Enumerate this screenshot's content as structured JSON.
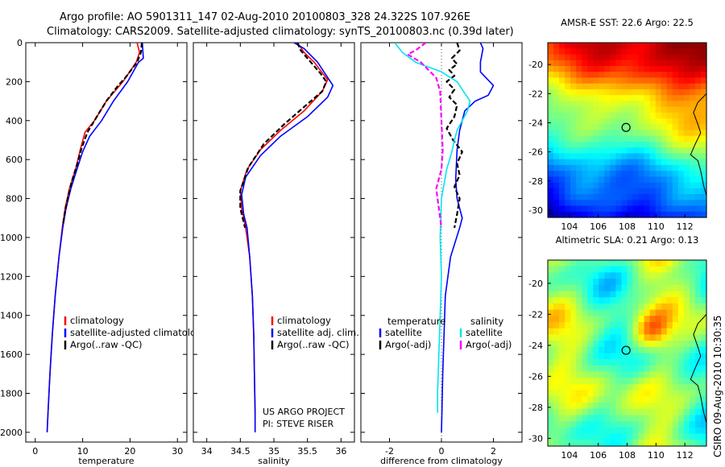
{
  "header": {
    "line1": "Argo profile: AO 5901311_147 02-Aug-2010 20100803_328 24.322S 107.926E",
    "line2": "Climatology: CARS2009. Satellite-adjusted climatology: synTS_20100803.nc (0.39d later)"
  },
  "side_caption": "CSIRO 09-Aug-2010 10:30:35",
  "chart_data": [
    {
      "type": "line",
      "id": "temperature",
      "xlabel": "temperature",
      "ylabel": "",
      "xlim": [
        -2,
        32
      ],
      "ylim": [
        2050,
        0
      ],
      "xticks": [
        0,
        10,
        20,
        30
      ],
      "yticks": [
        0,
        200,
        400,
        600,
        800,
        1000,
        1200,
        1400,
        1600,
        1800,
        2000
      ],
      "legend": [
        "climatology",
        "satellite-adjusted climatology",
        "Argo(..raw -QC)"
      ],
      "series": [
        {
          "name": "climatology",
          "color": "#ff0000",
          "dash": "",
          "points": [
            [
              21.5,
              0
            ],
            [
              22,
              50
            ],
            [
              21.3,
              100
            ],
            [
              18.5,
              200
            ],
            [
              15,
              300
            ],
            [
              12.5,
              400
            ],
            [
              10.5,
              460
            ],
            [
              9.5,
              550
            ],
            [
              8.5,
              650
            ],
            [
              7.2,
              750
            ],
            [
              6.3,
              850
            ],
            [
              5.7,
              950
            ],
            [
              5,
              1100
            ],
            [
              4.2,
              1300
            ],
            [
              3.6,
              1500
            ],
            [
              3.1,
              1700
            ],
            [
              2.7,
              1900
            ],
            [
              2.5,
              2000
            ]
          ]
        },
        {
          "name": "satellite-adjusted climatology",
          "color": "#0000ff",
          "dash": "",
          "points": [
            [
              22.6,
              0
            ],
            [
              22.8,
              80
            ],
            [
              21.8,
              100
            ],
            [
              19.5,
              200
            ],
            [
              16.5,
              300
            ],
            [
              14,
              400
            ],
            [
              11.5,
              480
            ],
            [
              10,
              560
            ],
            [
              8.8,
              650
            ],
            [
              7.5,
              750
            ],
            [
              6.5,
              850
            ],
            [
              5.8,
              950
            ],
            [
              5,
              1100
            ],
            [
              4.2,
              1300
            ],
            [
              3.6,
              1500
            ],
            [
              3.1,
              1700
            ],
            [
              2.7,
              1900
            ],
            [
              2.5,
              2000
            ]
          ]
        },
        {
          "name": "Argo(..raw -QC)",
          "color": "#000000",
          "dash": "6 3",
          "points": [
            [
              22.5,
              0
            ],
            [
              22.3,
              50
            ],
            [
              21.5,
              100
            ],
            [
              19,
              180
            ],
            [
              17.5,
              220
            ],
            [
              15,
              300
            ],
            [
              13,
              380
            ],
            [
              11,
              460
            ],
            [
              9.8,
              540
            ],
            [
              8.9,
              620
            ],
            [
              7.6,
              720
            ],
            [
              6.5,
              840
            ],
            [
              5.8,
              940
            ]
          ]
        }
      ]
    },
    {
      "type": "line",
      "id": "salinity",
      "xlabel": "salinity",
      "ylabel": "",
      "xlim": [
        33.8,
        36.2
      ],
      "ylim": [
        2050,
        0
      ],
      "xticks": [
        34,
        34.5,
        35,
        35.5,
        36
      ],
      "tick_labels": [
        "34",
        "34.5",
        "35",
        "35.5",
        "36"
      ],
      "yticks": [
        0,
        200,
        400,
        600,
        800,
        1000,
        1200,
        1400,
        1600,
        1800,
        2000
      ],
      "legend": [
        "climatology",
        "satellite adj. clim.",
        "Argo(..raw -QC)"
      ],
      "annotations": [
        "US ARGO PROJECT",
        "PI: STEVE RISER"
      ],
      "series": [
        {
          "name": "climatology",
          "color": "#ff0000",
          "dash": "",
          "points": [
            [
              35.35,
              0
            ],
            [
              35.45,
              50
            ],
            [
              35.6,
              100
            ],
            [
              35.8,
              190
            ],
            [
              35.72,
              250
            ],
            [
              35.45,
              350
            ],
            [
              35.1,
              450
            ],
            [
              34.8,
              550
            ],
            [
              34.6,
              650
            ],
            [
              34.5,
              760
            ],
            [
              34.52,
              850
            ],
            [
              34.58,
              950
            ],
            [
              34.64,
              1100
            ],
            [
              34.68,
              1300
            ],
            [
              34.7,
              1500
            ],
            [
              34.71,
              1700
            ],
            [
              34.72,
              1900
            ],
            [
              34.72,
              2000
            ]
          ]
        },
        {
          "name": "satellite adj. clim.",
          "color": "#0000ff",
          "dash": "",
          "points": [
            [
              35.3,
              0
            ],
            [
              35.45,
              30
            ],
            [
              35.65,
              100
            ],
            [
              35.88,
              220
            ],
            [
              35.8,
              280
            ],
            [
              35.5,
              380
            ],
            [
              35.1,
              480
            ],
            [
              34.8,
              580
            ],
            [
              34.58,
              690
            ],
            [
              34.52,
              780
            ],
            [
              34.55,
              880
            ],
            [
              34.6,
              950
            ],
            [
              34.64,
              1100
            ],
            [
              34.68,
              1300
            ],
            [
              34.7,
              1500
            ],
            [
              34.71,
              1700
            ],
            [
              34.72,
              1900
            ],
            [
              34.72,
              2000
            ]
          ]
        },
        {
          "name": "Argo(..raw -QC)",
          "color": "#000000",
          "dash": "6 3",
          "points": [
            [
              35.35,
              0
            ],
            [
              35.4,
              40
            ],
            [
              35.5,
              80
            ],
            [
              35.7,
              160
            ],
            [
              35.78,
              200
            ],
            [
              35.72,
              250
            ],
            [
              35.45,
              330
            ],
            [
              35.15,
              420
            ],
            [
              34.85,
              520
            ],
            [
              34.62,
              640
            ],
            [
              34.5,
              760
            ],
            [
              34.5,
              850
            ],
            [
              34.57,
              950
            ]
          ]
        }
      ]
    },
    {
      "type": "line",
      "id": "difference",
      "xlabel": "difference from climatology",
      "ylabel": "",
      "xlim": [
        -3.1,
        3.1
      ],
      "ylim": [
        2050,
        0
      ],
      "xticks": [
        -2,
        0,
        2
      ],
      "yticks": [
        0,
        200,
        400,
        600,
        800,
        1000,
        1200,
        1400,
        1600,
        1800,
        2000
      ],
      "legend_temperature_title": "temperature",
      "legend_salinity_title": "salinity",
      "legend": [
        "satellite",
        "Argo(-adj)",
        "satellite",
        "Argo(-adj)"
      ],
      "series": [
        {
          "name": "satellite",
          "color": "#0000ff",
          "dash": "",
          "points": [
            [
              1.5,
              0
            ],
            [
              1.6,
              30
            ],
            [
              1.5,
              100
            ],
            [
              1.5,
              150
            ],
            [
              2,
              220
            ],
            [
              1.8,
              270
            ],
            [
              1.3,
              300
            ],
            [
              0.9,
              350
            ],
            [
              0.7,
              450
            ],
            [
              0.6,
              550
            ],
            [
              0.55,
              700
            ],
            [
              0.6,
              800
            ],
            [
              0.8,
              900
            ],
            [
              0.7,
              950
            ],
            [
              0.35,
              1100
            ],
            [
              0.15,
              1300
            ],
            [
              0.1,
              1500
            ],
            [
              0.05,
              1700
            ],
            [
              0.02,
              1900
            ],
            [
              0,
              2000
            ]
          ]
        },
        {
          "name": "Argo(-adj)",
          "color": "#000000",
          "dash": "6 3",
          "points": [
            [
              0.6,
              0
            ],
            [
              0.7,
              40
            ],
            [
              0.4,
              80
            ],
            [
              0.6,
              110
            ],
            [
              0.3,
              140
            ],
            [
              0.5,
              170
            ],
            [
              0.2,
              200
            ],
            [
              0.5,
              240
            ],
            [
              0.3,
              280
            ],
            [
              0.6,
              320
            ],
            [
              0.5,
              380
            ],
            [
              0.2,
              440
            ],
            [
              0.45,
              500
            ],
            [
              0.8,
              560
            ],
            [
              0.6,
              620
            ],
            [
              0.7,
              680
            ],
            [
              0.5,
              740
            ],
            [
              0.7,
              800
            ],
            [
              0.6,
              880
            ],
            [
              0.5,
              950
            ]
          ]
        },
        {
          "name": "satellite",
          "color": "#00e5ee",
          "dash": "",
          "points": [
            [
              -1.8,
              0
            ],
            [
              -1.5,
              50
            ],
            [
              -1,
              100
            ],
            [
              0,
              150
            ],
            [
              0.6,
              200
            ],
            [
              0.9,
              260
            ],
            [
              1.1,
              300
            ],
            [
              1,
              350
            ],
            [
              0.8,
              400
            ],
            [
              0.6,
              450
            ],
            [
              0.5,
              500
            ],
            [
              0.4,
              560
            ],
            [
              0.2,
              650
            ],
            [
              0,
              800
            ],
            [
              -0.05,
              1000
            ],
            [
              0,
              1200
            ],
            [
              -0.05,
              1400
            ],
            [
              -0.1,
              1600
            ],
            [
              -0.15,
              1800
            ],
            [
              -0.15,
              1900
            ]
          ]
        },
        {
          "name": "Argo(-adj)",
          "color": "#ff00ff",
          "dash": "6 3",
          "points": [
            [
              -0.6,
              0
            ],
            [
              -1,
              40
            ],
            [
              -1.3,
              60
            ],
            [
              -0.8,
              100
            ],
            [
              -0.5,
              140
            ],
            [
              -0.2,
              180
            ],
            [
              -0.05,
              250
            ],
            [
              0,
              400
            ],
            [
              0.05,
              550
            ],
            [
              0,
              650
            ],
            [
              -0.2,
              750
            ],
            [
              -0.1,
              850
            ],
            [
              0,
              950
            ]
          ]
        }
      ]
    },
    {
      "type": "heatmap",
      "id": "sst-map",
      "title": "AMSR-E SST: 22.6 Argo: 22.5",
      "xlim": [
        102.5,
        113.5
      ],
      "ylim": [
        -30.5,
        -18.5
      ],
      "xticks": [
        104,
        106,
        108,
        110,
        112
      ],
      "yticks": [
        -20,
        -22,
        -24,
        -26,
        -28,
        -30
      ],
      "float_position": [
        107.926,
        -24.322
      ]
    },
    {
      "type": "heatmap",
      "id": "sla-map",
      "title": "Altimetric SLA: 0.21 Argo: 0.13",
      "xlim": [
        102.5,
        113.5
      ],
      "ylim": [
        -30.5,
        -18.5
      ],
      "xticks": [
        104,
        106,
        108,
        110,
        112
      ],
      "yticks": [
        -20,
        -22,
        -24,
        -26,
        -28,
        -30
      ],
      "float_position": [
        107.926,
        -24.322
      ]
    }
  ]
}
